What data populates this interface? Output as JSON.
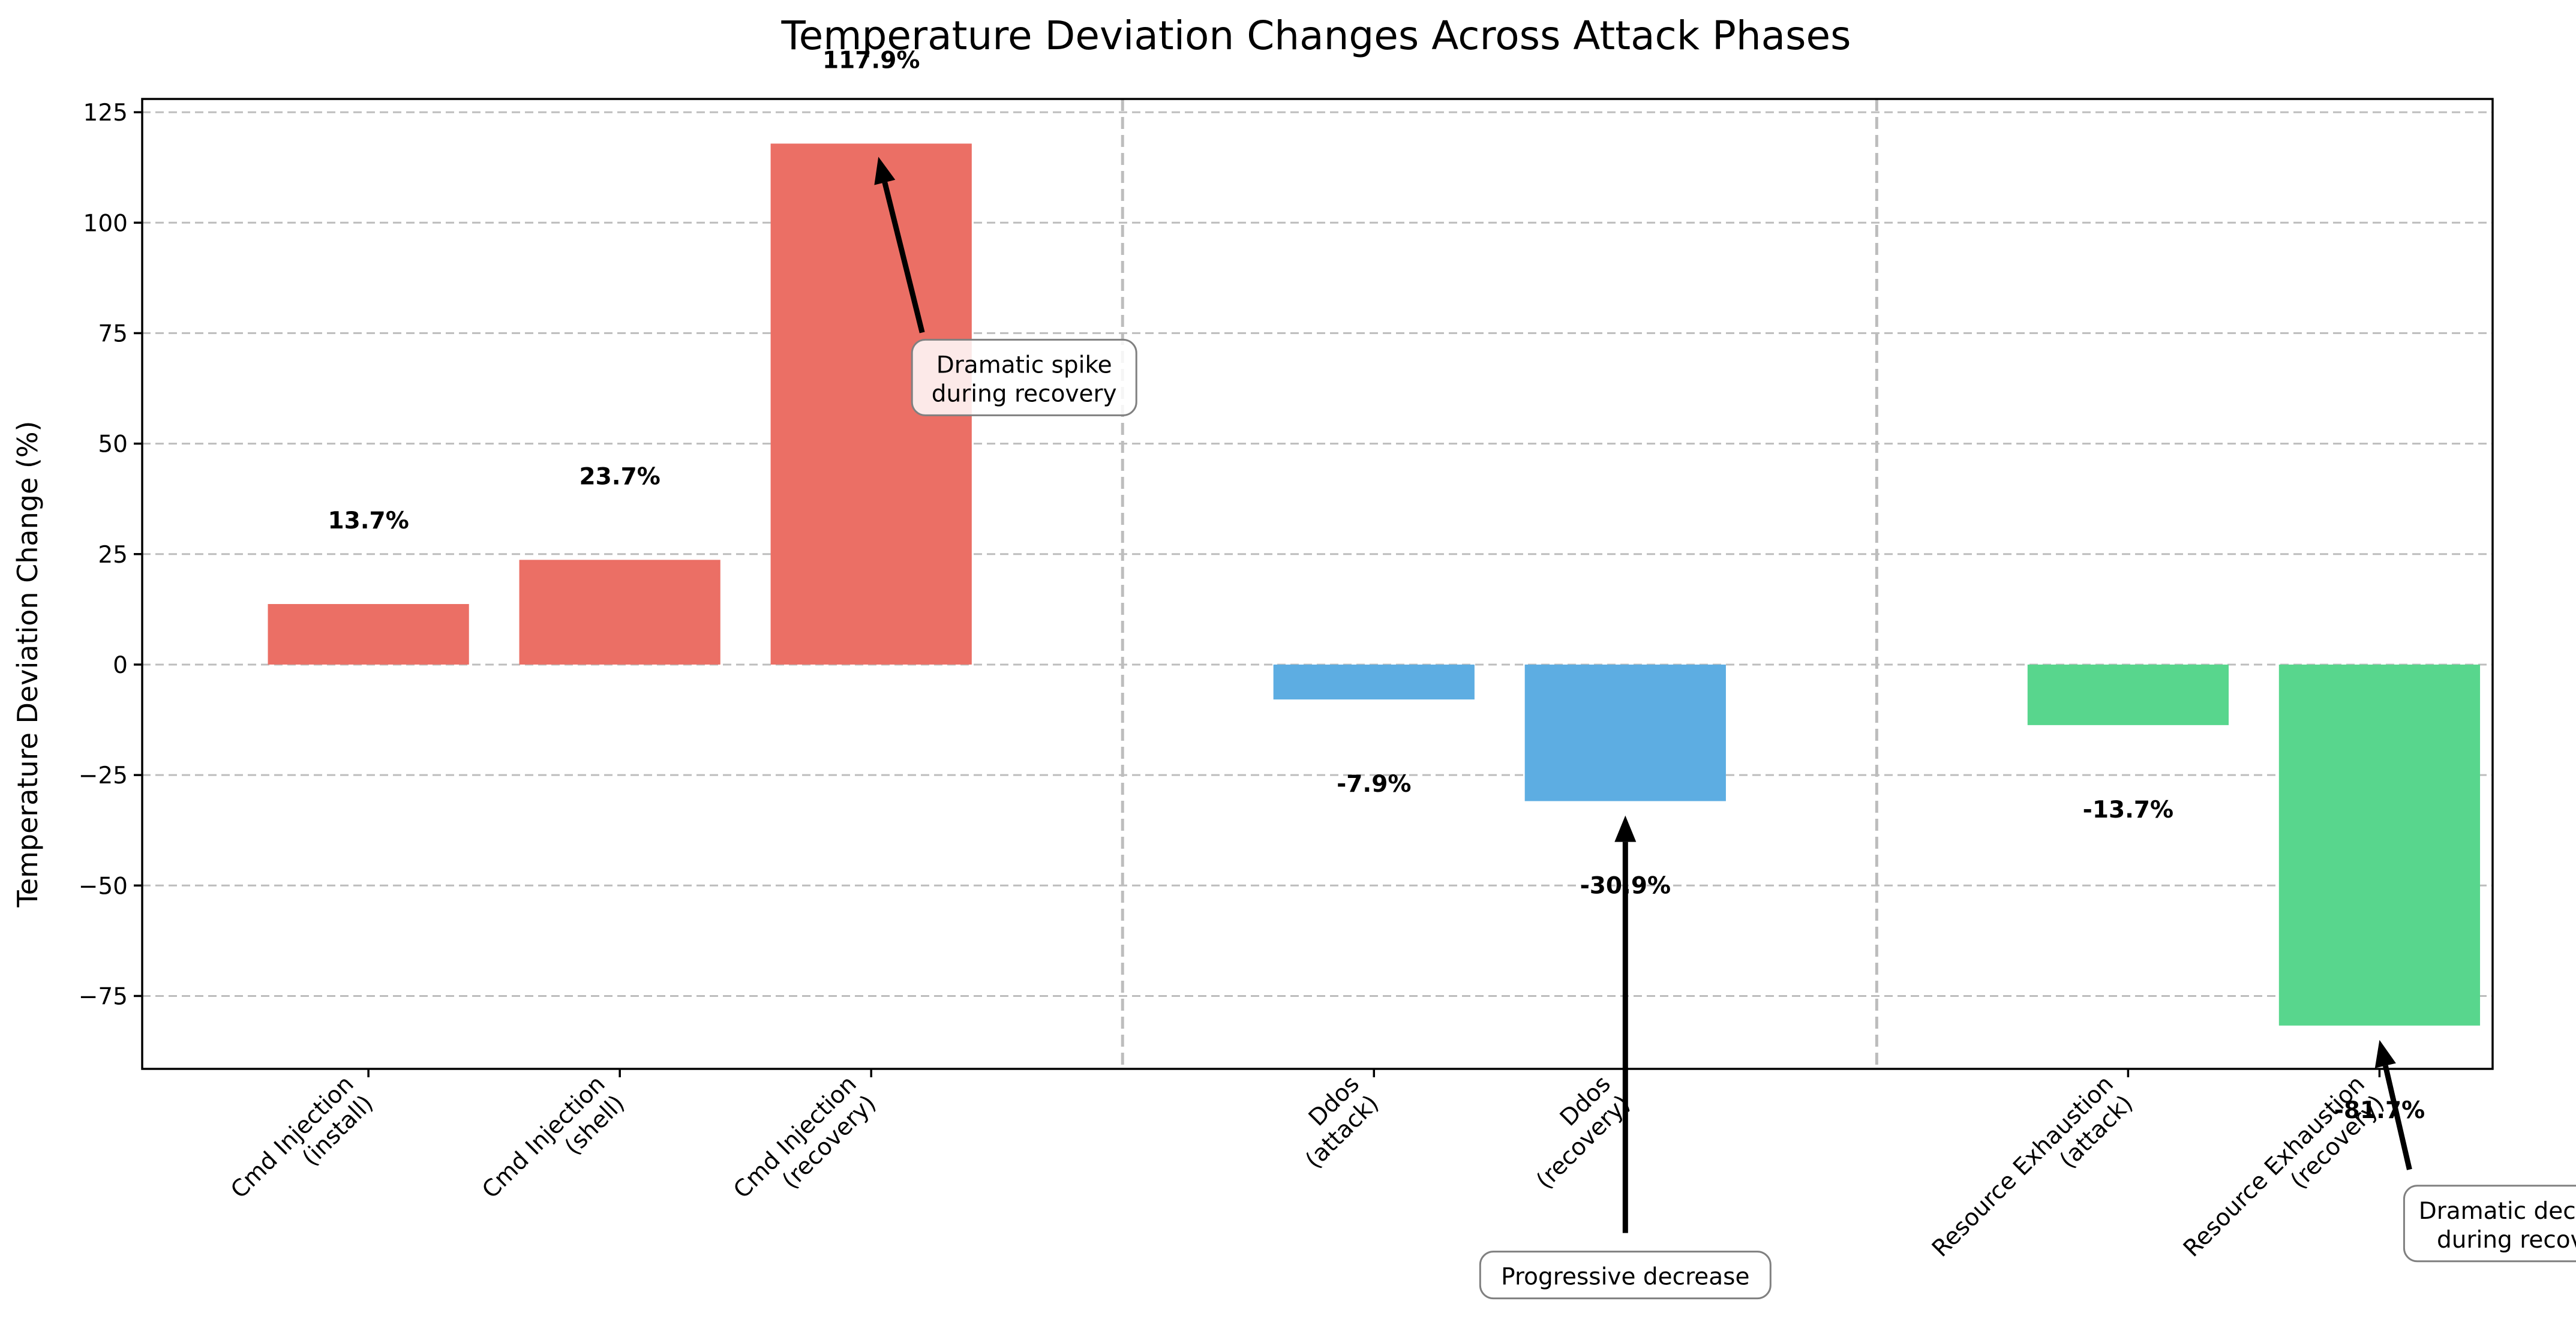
{
  "chart_data": {
    "type": "bar",
    "title": "Temperature Deviation Changes Across Attack Phases",
    "xlabel": "",
    "ylabel": "Temperature Deviation Change (%)",
    "ylim": [
      -91.5,
      128
    ],
    "yticks": [
      -75,
      -50,
      -25,
      0,
      25,
      50,
      75,
      100,
      125
    ],
    "grid": true,
    "groups": [
      {
        "color": "#eb6f65",
        "bars": [
          {
            "category": "Cmd Injection\n(install)",
            "value": 13.7,
            "label": "13.7%"
          },
          {
            "category": "Cmd Injection\n(shell)",
            "value": 23.7,
            "label": "23.7%"
          },
          {
            "category": "Cmd Injection\n(recovery)",
            "value": 117.9,
            "label": "117.9%"
          }
        ]
      },
      {
        "color": "#5dade2",
        "bars": [
          {
            "category": "Ddos\n(attack)",
            "value": -7.9,
            "label": "-7.9%"
          },
          {
            "category": "Ddos\n(recovery)",
            "value": -30.9,
            "label": "-30.9%"
          }
        ]
      },
      {
        "color": "#58d68d",
        "bars": [
          {
            "category": "Resource Exhaustion\n(attack)",
            "value": -13.7,
            "label": "-13.7%"
          },
          {
            "category": "Resource Exhaustion\n(recovery)",
            "value": -81.7,
            "label": "-81.7%"
          }
        ]
      }
    ],
    "annotations": [
      {
        "text": "Dramatic spike\nduring recovery",
        "target_bar": "Cmd Injection\n(recovery)",
        "target_value": 117.9
      },
      {
        "text": "Progressive decrease",
        "target_bar": "Ddos\n(recovery)",
        "target_value": -30.9
      },
      {
        "text": "Dramatic decrease\nduring recovery",
        "target_bar": "Resource Exhaustion\n(recovery)",
        "target_value": -81.7
      }
    ]
  }
}
